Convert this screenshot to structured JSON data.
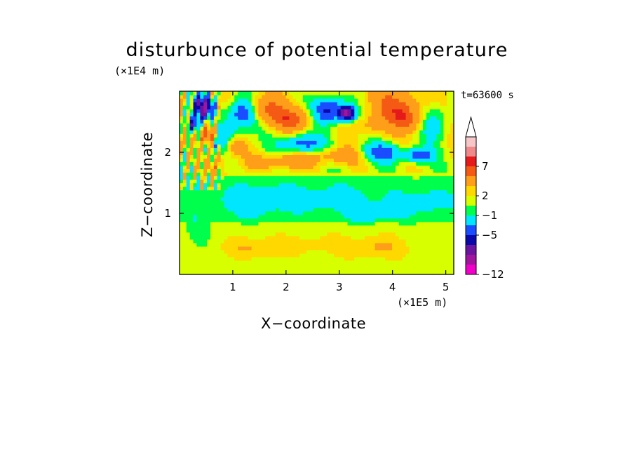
{
  "chart_data": {
    "type": "heatmap",
    "title": "disturbunce of potential temperature",
    "xlabel": "X−coordinate",
    "ylabel": "Z−coordinate",
    "x_unit": "(×1E5 m)",
    "y_unit": "(×1E4 m)",
    "annotation": "t=63600 s",
    "xlim": [
      0,
      5.15
    ],
    "ylim": [
      0,
      3.0
    ],
    "x_ticks": [
      "1",
      "2",
      "3",
      "4",
      "5"
    ],
    "y_ticks": [
      "1",
      "2"
    ],
    "colorbar": {
      "tick_labels": [
        "7",
        "2",
        "−1",
        "−5",
        "−12"
      ],
      "levels": [
        12,
        9,
        7,
        5,
        2,
        1,
        0,
        -1,
        -3,
        -5,
        -7,
        -9,
        -12
      ],
      "colors": [
        "#f7c7c7",
        "#f08a8a",
        "#e51a1a",
        "#f55a14",
        "#ff9e18",
        "#ffd800",
        "#d7ff00",
        "#00ff4c",
        "#00e6ff",
        "#1a4dff",
        "#0a08a8",
        "#6a14a0",
        "#a0149e",
        "#f000c8"
      ]
    },
    "grid": false,
    "legend": "colorbar-right"
  }
}
